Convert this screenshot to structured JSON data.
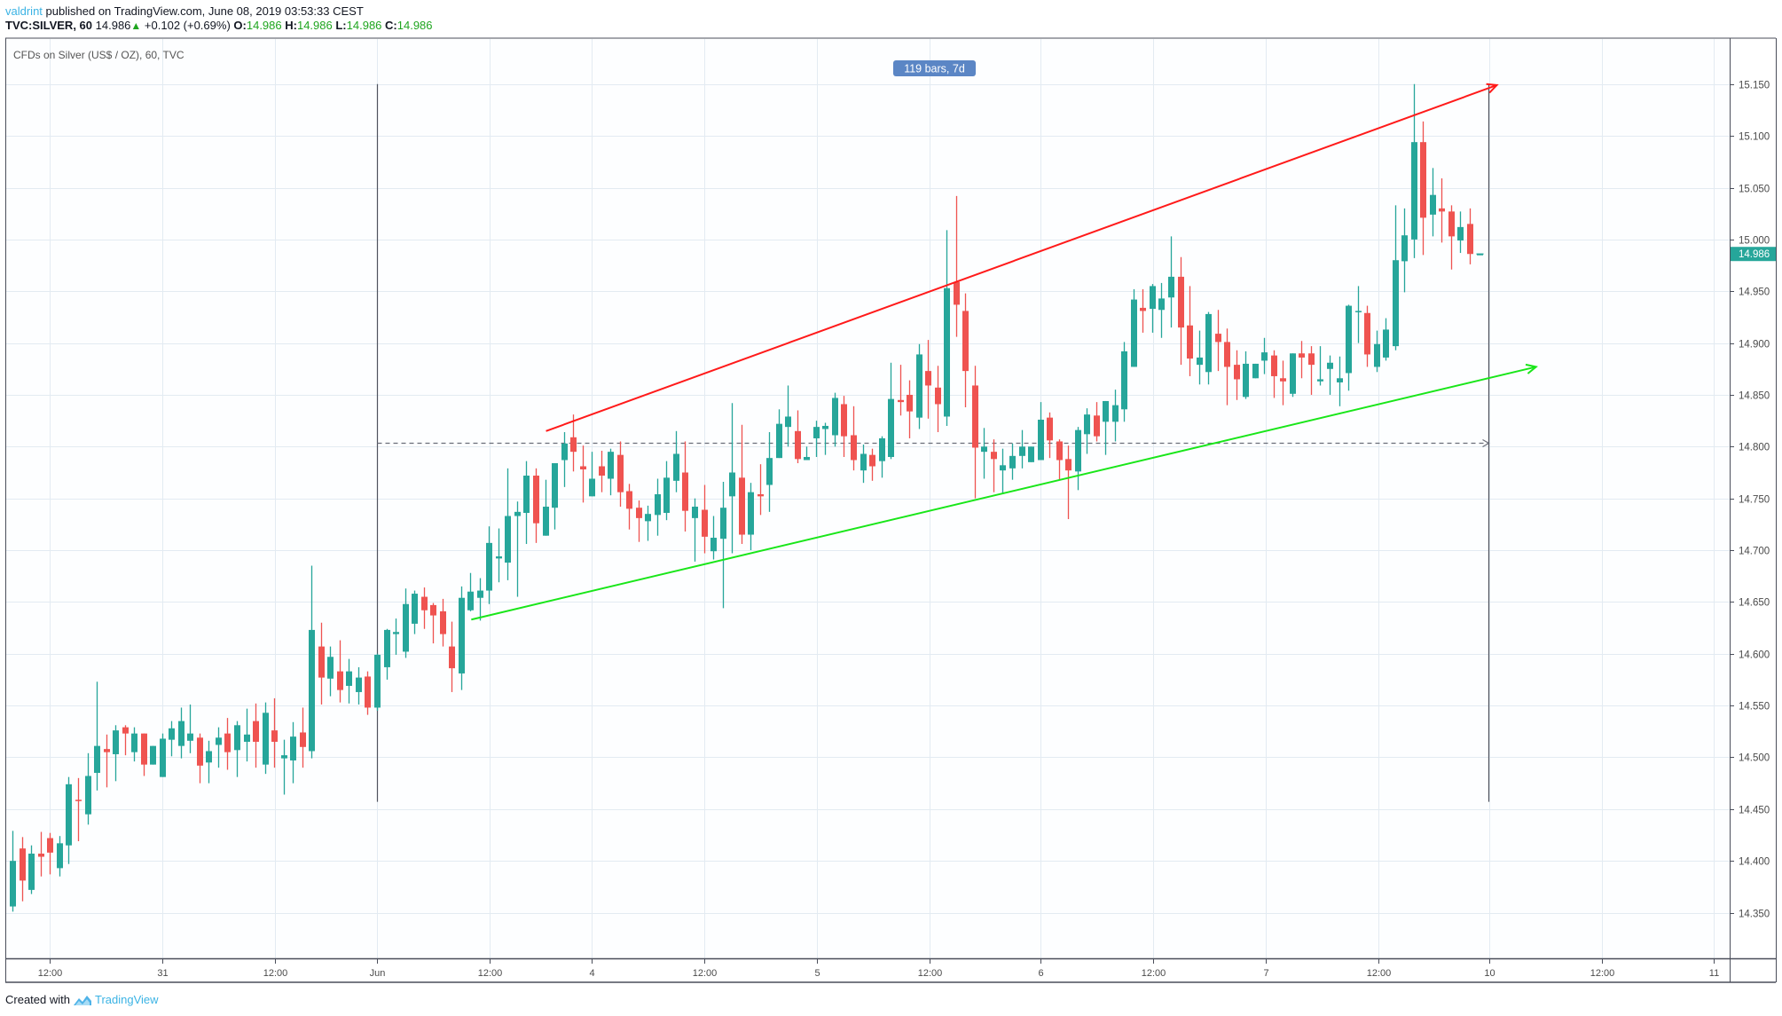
{
  "header": {
    "author": "valdrint",
    "published": "published on TradingView.com, June 08, 2019 03:53:33 CEST",
    "symbol": "TVC:SILVER, 60",
    "last": "14.986",
    "change_arrow": "▲",
    "change": "+0.102 (+0.69%)",
    "o_label": "O:",
    "o": "14.986",
    "h_label": "H:",
    "h": "14.986",
    "l_label": "L:",
    "l": "14.986",
    "c_label": "C:",
    "c": "14.986"
  },
  "footer": {
    "created_with": "Created with",
    "brand": "TradingView",
    "brand_icon": "tradingview-logo-icon"
  },
  "colors": {
    "up": "#26a69a",
    "down": "#ef5350",
    "resistance_line": "#ff1a1a",
    "support_line": "#19e619",
    "range_label_bg": "#5b86c5",
    "author": "#3bb3e4"
  },
  "chart_data": {
    "type": "candlestick",
    "title": "CFDs on Silver (US$ / OZ), 60, TVC",
    "y_ticks": [
      "15.150",
      "15.100",
      "15.050",
      "15.000",
      "14.950",
      "14.900",
      "14.850",
      "14.800",
      "14.750",
      "14.700",
      "14.650",
      "14.600",
      "14.550",
      "14.500",
      "14.450",
      "14.400",
      "14.350"
    ],
    "ylim": [
      14.315,
      15.19
    ],
    "x_ticks": [
      "12:00",
      "31",
      "12:00",
      "Jun",
      "12:00",
      "4",
      "12:00",
      "5",
      "12:00",
      "6",
      "12:00",
      "7",
      "12:00",
      "10",
      "12:00",
      "11"
    ],
    "current_price": "14.986",
    "grid": true,
    "ohlc_fields": [
      "open",
      "high",
      "low",
      "close"
    ],
    "candles": [
      [
        14.356,
        14.429,
        14.351,
        14.4
      ],
      [
        14.412,
        14.423,
        14.361,
        14.381
      ],
      [
        14.372,
        14.415,
        14.368,
        14.407
      ],
      [
        14.407,
        14.428,
        14.385,
        14.404
      ],
      [
        14.422,
        14.427,
        14.387,
        14.408
      ],
      [
        14.393,
        14.424,
        14.385,
        14.417
      ],
      [
        14.415,
        14.481,
        14.397,
        14.474
      ],
      [
        14.459,
        14.48,
        14.419,
        14.458
      ],
      [
        14.445,
        14.504,
        14.435,
        14.482
      ],
      [
        14.485,
        14.573,
        14.468,
        14.511
      ],
      [
        14.508,
        14.522,
        14.471,
        14.505
      ],
      [
        14.503,
        14.531,
        14.477,
        14.526
      ],
      [
        14.529,
        14.531,
        14.502,
        14.523
      ],
      [
        14.505,
        14.529,
        14.496,
        14.523
      ],
      [
        14.523,
        14.523,
        14.482,
        14.493
      ],
      [
        14.493,
        14.511,
        14.493,
        14.511
      ],
      [
        14.481,
        14.523,
        14.481,
        14.518
      ],
      [
        14.517,
        14.535,
        14.501,
        14.528
      ],
      [
        14.511,
        14.548,
        14.499,
        14.535
      ],
      [
        14.516,
        14.551,
        14.504,
        14.523
      ],
      [
        14.519,
        14.523,
        14.475,
        14.492
      ],
      [
        14.495,
        14.516,
        14.475,
        14.506
      ],
      [
        14.512,
        14.529,
        14.49,
        14.519
      ],
      [
        14.523,
        14.538,
        14.488,
        14.505
      ],
      [
        14.507,
        14.535,
        14.481,
        14.531
      ],
      [
        14.515,
        14.547,
        14.496,
        14.522
      ],
      [
        14.535,
        14.552,
        14.49,
        14.515
      ],
      [
        14.493,
        14.553,
        14.484,
        14.543
      ],
      [
        14.526,
        14.557,
        14.49,
        14.515
      ],
      [
        14.499,
        14.517,
        14.464,
        14.502
      ],
      [
        14.497,
        14.534,
        14.475,
        14.52
      ],
      [
        14.524,
        14.548,
        14.49,
        14.51
      ],
      [
        14.506,
        14.685,
        14.499,
        14.623
      ],
      [
        14.607,
        14.63,
        14.551,
        14.577
      ],
      [
        14.576,
        14.607,
        14.559,
        14.597
      ],
      [
        14.583,
        14.613,
        14.553,
        14.565
      ],
      [
        14.569,
        14.595,
        14.552,
        14.583
      ],
      [
        14.563,
        14.587,
        14.551,
        14.577
      ],
      [
        14.578,
        14.583,
        14.541,
        14.548
      ],
      [
        14.548,
        14.6,
        14.545,
        14.599
      ],
      [
        14.587,
        14.624,
        14.575,
        14.623
      ],
      [
        14.619,
        14.634,
        14.599,
        14.621
      ],
      [
        14.602,
        14.663,
        14.596,
        14.648
      ],
      [
        14.629,
        14.661,
        14.619,
        14.658
      ],
      [
        14.655,
        14.664,
        14.624,
        14.642
      ],
      [
        14.647,
        14.649,
        14.61,
        14.637
      ],
      [
        14.641,
        14.653,
        14.607,
        14.619
      ],
      [
        14.607,
        14.631,
        14.563,
        14.586
      ],
      [
        14.581,
        14.665,
        14.565,
        14.654
      ],
      [
        14.642,
        14.678,
        14.641,
        14.66
      ],
      [
        14.654,
        14.673,
        14.632,
        14.661
      ],
      [
        14.661,
        14.723,
        14.648,
        14.707
      ],
      [
        14.692,
        14.721,
        14.669,
        14.694
      ],
      [
        14.688,
        14.779,
        14.671,
        14.733
      ],
      [
        14.733,
        14.747,
        14.655,
        14.737
      ],
      [
        14.736,
        14.786,
        14.706,
        14.772
      ],
      [
        14.772,
        14.779,
        14.707,
        14.726
      ],
      [
        14.714,
        14.768,
        14.714,
        14.742
      ],
      [
        14.741,
        14.784,
        14.72,
        14.784
      ],
      [
        14.787,
        14.814,
        14.761,
        14.803
      ],
      [
        14.809,
        14.831,
        14.776,
        14.795
      ],
      [
        14.781,
        14.801,
        14.746,
        14.778
      ],
      [
        14.752,
        14.795,
        14.752,
        14.769
      ],
      [
        14.781,
        14.796,
        14.756,
        14.772
      ],
      [
        14.769,
        14.798,
        14.753,
        14.795
      ],
      [
        14.792,
        14.805,
        14.742,
        14.756
      ],
      [
        14.757,
        14.764,
        14.72,
        14.74
      ],
      [
        14.741,
        14.748,
        14.708,
        14.731
      ],
      [
        14.728,
        14.743,
        14.709,
        14.735
      ],
      [
        14.734,
        14.769,
        14.714,
        14.754
      ],
      [
        14.736,
        14.786,
        14.729,
        14.77
      ],
      [
        14.767,
        14.815,
        14.756,
        14.793
      ],
      [
        14.775,
        14.805,
        14.718,
        14.738
      ],
      [
        14.731,
        14.75,
        14.689,
        14.742
      ],
      [
        14.739,
        14.763,
        14.697,
        14.713
      ],
      [
        14.699,
        14.733,
        14.691,
        14.712
      ],
      [
        14.711,
        14.766,
        14.644,
        14.741
      ],
      [
        14.752,
        14.842,
        14.697,
        14.775
      ],
      [
        14.77,
        14.821,
        14.706,
        14.715
      ],
      [
        14.715,
        14.765,
        14.7,
        14.756
      ],
      [
        14.754,
        14.783,
        14.734,
        14.752
      ],
      [
        14.763,
        14.814,
        14.737,
        14.789
      ],
      [
        14.789,
        14.836,
        14.789,
        14.822
      ],
      [
        14.819,
        14.859,
        14.8,
        14.829
      ],
      [
        14.815,
        14.835,
        14.784,
        14.788
      ],
      [
        14.787,
        14.8,
        14.787,
        14.79
      ],
      [
        14.808,
        14.825,
        14.79,
        14.819
      ],
      [
        14.817,
        14.823,
        14.792,
        14.82
      ],
      [
        14.811,
        14.852,
        14.8,
        14.847
      ],
      [
        14.841,
        14.849,
        14.79,
        14.81
      ],
      [
        14.811,
        14.839,
        14.777,
        14.787
      ],
      [
        14.777,
        14.802,
        14.765,
        14.793
      ],
      [
        14.792,
        14.798,
        14.767,
        14.781
      ],
      [
        14.786,
        14.81,
        14.77,
        14.808
      ],
      [
        14.79,
        14.881,
        14.788,
        14.846
      ],
      [
        14.845,
        14.879,
        14.83,
        14.843
      ],
      [
        14.85,
        14.864,
        14.808,
        14.834
      ],
      [
        14.828,
        14.899,
        14.817,
        14.889
      ],
      [
        14.873,
        14.903,
        14.827,
        14.859
      ],
      [
        14.857,
        14.878,
        14.814,
        14.841
      ],
      [
        14.829,
        15.009,
        14.82,
        14.953
      ],
      [
        14.959,
        15.042,
        14.906,
        14.937
      ],
      [
        14.931,
        14.948,
        14.838,
        14.873
      ],
      [
        14.859,
        14.878,
        14.75,
        14.799
      ],
      [
        14.795,
        14.818,
        14.769,
        14.8
      ],
      [
        14.795,
        14.807,
        14.756,
        14.788
      ],
      [
        14.777,
        14.798,
        14.754,
        14.782
      ],
      [
        14.779,
        14.803,
        14.768,
        14.791
      ],
      [
        14.791,
        14.816,
        14.779,
        14.8
      ],
      [
        14.785,
        14.8,
        14.785,
        14.8
      ],
      [
        14.787,
        14.843,
        14.787,
        14.826
      ],
      [
        14.828,
        14.833,
        14.789,
        14.806
      ],
      [
        14.805,
        14.807,
        14.768,
        14.787
      ],
      [
        14.788,
        14.801,
        14.73,
        14.777
      ],
      [
        14.776,
        14.819,
        14.758,
        14.816
      ],
      [
        14.812,
        14.837,
        14.793,
        14.831
      ],
      [
        14.83,
        14.843,
        14.805,
        14.81
      ],
      [
        14.824,
        14.844,
        14.792,
        14.844
      ],
      [
        14.824,
        14.855,
        14.805,
        14.84
      ],
      [
        14.836,
        14.901,
        14.824,
        14.892
      ],
      [
        14.877,
        14.952,
        14.877,
        14.942
      ],
      [
        14.934,
        14.952,
        14.91,
        14.931
      ],
      [
        14.933,
        14.957,
        14.91,
        14.955
      ],
      [
        14.932,
        14.958,
        14.905,
        14.943
      ],
      [
        14.944,
        15.003,
        14.915,
        14.964
      ],
      [
        14.964,
        14.983,
        14.879,
        14.915
      ],
      [
        14.917,
        14.955,
        14.868,
        14.885
      ],
      [
        14.879,
        14.912,
        14.86,
        14.886
      ],
      [
        14.872,
        14.93,
        14.86,
        14.928
      ],
      [
        14.909,
        14.932,
        14.873,
        14.901
      ],
      [
        14.901,
        14.914,
        14.84,
        14.877
      ],
      [
        14.879,
        14.893,
        14.845,
        14.865
      ],
      [
        14.848,
        14.892,
        14.846,
        14.88
      ],
      [
        14.866,
        14.88,
        14.866,
        14.88
      ],
      [
        14.883,
        14.905,
        14.87,
        14.891
      ],
      [
        14.888,
        14.893,
        14.847,
        14.868
      ],
      [
        14.866,
        14.883,
        14.84,
        14.863
      ],
      [
        14.851,
        14.89,
        14.848,
        14.89
      ],
      [
        14.89,
        14.902,
        14.866,
        14.886
      ],
      [
        14.89,
        14.897,
        14.85,
        14.879
      ],
      [
        14.863,
        14.897,
        14.859,
        14.865
      ],
      [
        14.875,
        14.888,
        14.85,
        14.881
      ],
      [
        14.862,
        14.887,
        14.839,
        14.866
      ],
      [
        14.871,
        14.937,
        14.854,
        14.936
      ],
      [
        14.93,
        14.955,
        14.9,
        14.931
      ],
      [
        14.929,
        14.936,
        14.877,
        14.889
      ],
      [
        14.877,
        14.912,
        14.872,
        14.899
      ],
      [
        14.886,
        14.924,
        14.883,
        14.913
      ],
      [
        14.897,
        15.033,
        14.893,
        14.98
      ],
      [
        14.979,
        15.03,
        14.949,
        15.004
      ],
      [
        15.0,
        15.15,
        14.982,
        15.094
      ],
      [
        15.094,
        15.114,
        14.985,
        15.021
      ],
      [
        15.024,
        15.069,
        15.003,
        15.043
      ],
      [
        15.03,
        15.059,
        14.997,
        15.027
      ],
      [
        15.027,
        15.033,
        14.971,
        15.003
      ],
      [
        14.999,
        15.027,
        14.987,
        15.012
      ],
      [
        15.015,
        15.03,
        14.976,
        14.986
      ],
      [
        14.986,
        14.986,
        14.986,
        14.986
      ]
    ],
    "drawings": {
      "resistance_line": {
        "from": {
          "bar": 57.1,
          "price": 14.815
        },
        "to": {
          "bar": 158.9,
          "price": 15.149
        }
      },
      "support_line": {
        "from": {
          "bar": 49.1,
          "price": 14.633
        },
        "to": {
          "bar": 163.1,
          "price": 14.877
        }
      },
      "date_range": {
        "from_bar": 39,
        "to_bar": 158,
        "price_top": 15.15,
        "price_bottom": 14.457,
        "mid_price": 14.804,
        "label": "119 bars, 7d"
      }
    }
  }
}
